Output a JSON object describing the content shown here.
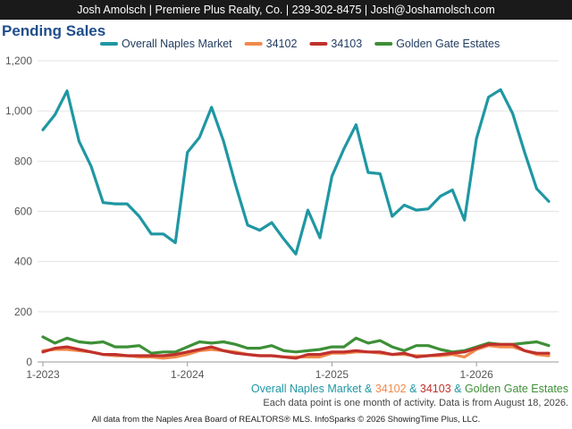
{
  "header": {
    "text": "Josh Amolsch | Premiere Plus Realty, Co. | 239-302-8475 | Josh@Joshamolsch.com"
  },
  "page_title": "Pending Sales",
  "footer": {
    "series_line": [
      {
        "text": "Overall Naples Market",
        "color": "#1f97a3"
      },
      {
        "text": " & ",
        "color": "#1f97a3"
      },
      {
        "text": "34102",
        "color": "#f08a4b"
      },
      {
        "text": " & ",
        "color": "#1f97a3"
      },
      {
        "text": "34103",
        "color": "#c0312c"
      },
      {
        "text": " & ",
        "color": "#1f97a3"
      },
      {
        "text": "Golden Gate Estates",
        "color": "#3e8f37"
      }
    ],
    "note": "Each data point is one month of activity. Data is from August 18, 2026.",
    "credit": "All data from the Naples Area Board of REALTORS® MLS. InfoSparks © 2026 ShowingTime Plus, LLC."
  },
  "chart_data": {
    "type": "line",
    "title": "Pending Sales",
    "x": [
      "2023-01",
      "2023-02",
      "2023-03",
      "2023-04",
      "2023-05",
      "2023-06",
      "2023-07",
      "2023-08",
      "2023-09",
      "2023-10",
      "2023-11",
      "2023-12",
      "2024-01",
      "2024-02",
      "2024-03",
      "2024-04",
      "2024-05",
      "2024-06",
      "2024-07",
      "2024-08",
      "2024-09",
      "2024-10",
      "2024-11",
      "2024-12",
      "2025-01",
      "2025-02",
      "2025-03",
      "2025-04",
      "2025-05",
      "2025-06",
      "2025-07",
      "2025-08",
      "2025-09",
      "2025-10",
      "2025-11",
      "2025-12",
      "2026-01",
      "2026-02",
      "2026-03",
      "2026-04",
      "2026-05",
      "2026-06",
      "2026-07"
    ],
    "x_ticks": [
      "1-2023",
      "1-2024",
      "1-2025",
      "1-2026"
    ],
    "x_tick_positions": [
      "2023-01",
      "2024-01",
      "2025-01",
      "2026-01"
    ],
    "ylim": [
      0,
      1200
    ],
    "y_ticks": [
      0,
      200,
      400,
      600,
      800,
      1000,
      1200
    ],
    "y_tick_labels": [
      "0",
      "200",
      "400",
      "600",
      "800",
      "1,000",
      "1,200"
    ],
    "legend_position": "top",
    "grid": "horizontal",
    "series": [
      {
        "name": "Overall Naples Market",
        "color": "#1f97a3",
        "values": [
          925,
          985,
          1080,
          880,
          780,
          635,
          630,
          630,
          580,
          510,
          510,
          475,
          835,
          895,
          1015,
          880,
          705,
          545,
          525,
          555,
          490,
          430,
          605,
          495,
          740,
          850,
          945,
          755,
          750,
          580,
          625,
          605,
          610,
          660,
          685,
          565,
          890,
          1055,
          1085,
          990,
          835,
          690,
          640
        ]
      },
      {
        "name": "34102",
        "color": "#f08a4b",
        "values": [
          45,
          50,
          50,
          45,
          40,
          30,
          25,
          25,
          20,
          20,
          15,
          20,
          30,
          45,
          50,
          45,
          40,
          30,
          25,
          25,
          20,
          20,
          20,
          20,
          35,
          35,
          40,
          40,
          35,
          30,
          30,
          25,
          25,
          25,
          30,
          20,
          50,
          65,
          60,
          60,
          45,
          30,
          25
        ]
      },
      {
        "name": "34103",
        "color": "#c0312c",
        "values": [
          40,
          55,
          60,
          50,
          40,
          30,
          30,
          25,
          25,
          25,
          25,
          30,
          40,
          50,
          60,
          45,
          35,
          30,
          25,
          25,
          20,
          15,
          30,
          30,
          40,
          40,
          45,
          40,
          40,
          30,
          35,
          20,
          25,
          30,
          35,
          40,
          55,
          70,
          70,
          70,
          45,
          35,
          35
        ]
      },
      {
        "name": "Golden Gate Estates",
        "color": "#3e8f37",
        "values": [
          100,
          75,
          95,
          80,
          75,
          80,
          60,
          60,
          65,
          35,
          40,
          40,
          60,
          80,
          75,
          80,
          70,
          55,
          55,
          65,
          45,
          40,
          45,
          50,
          60,
          60,
          95,
          75,
          85,
          60,
          45,
          65,
          65,
          50,
          40,
          45,
          60,
          75,
          70,
          70,
          75,
          80,
          65
        ]
      }
    ]
  }
}
